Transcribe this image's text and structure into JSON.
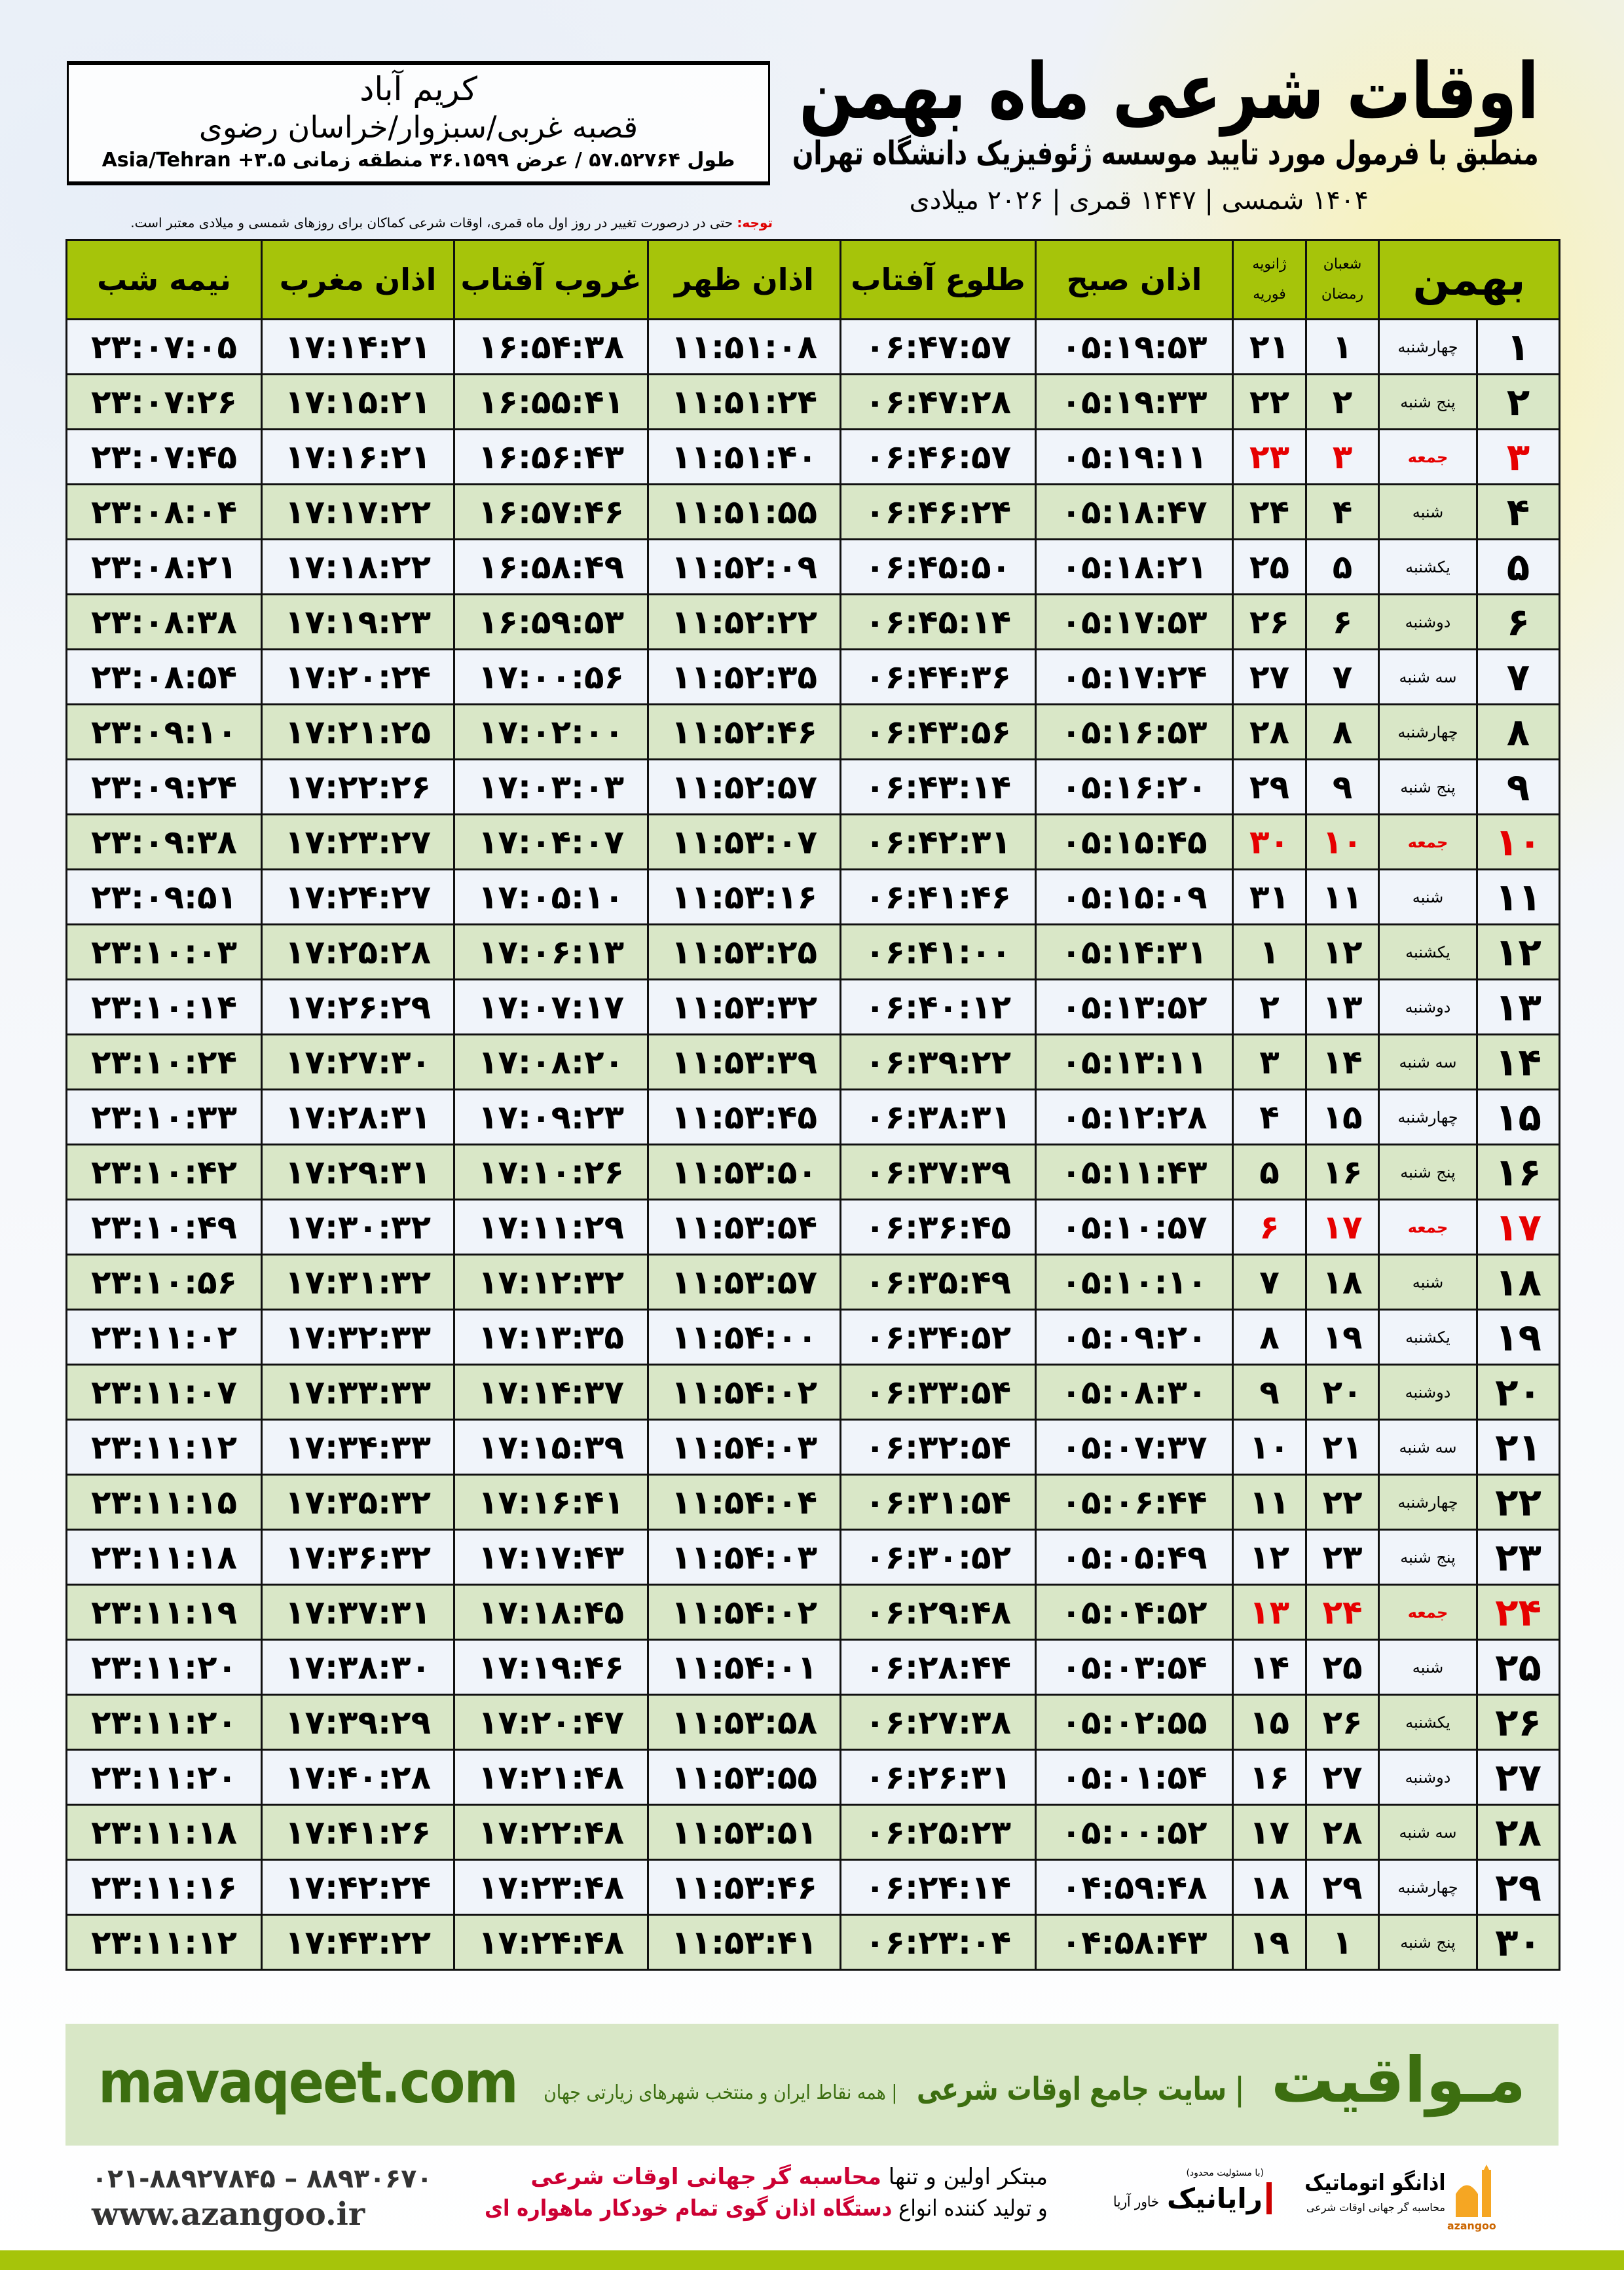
{
  "header": {
    "title": "اوقات شرعی ماه بهمن",
    "subtitle": "منطبق با فرمول مورد تایید موسسه ژئوفیزیک دانشگاه تهران",
    "dates": "۱۴۰۴ شمسی | ۱۴۴۷ قمری | ۲۰۲۶ میلادی"
  },
  "location": {
    "city": "کریم آباد",
    "region": "قصبه غربی/سبزوار/خراسان رضوی",
    "coords": "طول ۵۷.۵۲۷۶۴ / عرض ۳۶.۱۵۹۹ منطقه زمانی ۳.۵+ Asia/Tehran"
  },
  "note": {
    "label": "توجه:",
    "text": " حتی در درصورت تغییر در روز اول ماه قمری، اوقات شرعی کماکان برای روزهای شمسی و میلادی معتبر است."
  },
  "colors": {
    "header_green": "#a6c40a",
    "friday_red": "#e60000",
    "row_green": "#d9e7c7",
    "brand_green": "#3c6e10"
  },
  "table": {
    "headers": {
      "month": "بهمن",
      "hijri_top": "شعبان",
      "hijri_bottom": "رمضان",
      "greg_top": "ژانویه",
      "greg_bottom": "فوریه",
      "fajr": "اذان صبح",
      "sunrise": "طلوع آفتاب",
      "dhuhr": "اذان ظهر",
      "sunset": "غروب آفتاب",
      "maghrib": "اذان مغرب",
      "midnight": "نیمه شب"
    },
    "rows": [
      [
        "۱",
        "چهارشنبه",
        "۱",
        "۲۱",
        "۰۵:۱۹:۵۳",
        "۰۶:۴۷:۵۷",
        "۱۱:۵۱:۰۸",
        "۱۶:۵۴:۳۸",
        "۱۷:۱۴:۲۱",
        "۲۳:۰۷:۰۵"
      ],
      [
        "۲",
        "پنج شنبه",
        "۲",
        "۲۲",
        "۰۵:۱۹:۳۳",
        "۰۶:۴۷:۲۸",
        "۱۱:۵۱:۲۴",
        "۱۶:۵۵:۴۱",
        "۱۷:۱۵:۲۱",
        "۲۳:۰۷:۲۶"
      ],
      [
        "۳",
        "جمعه",
        "۳",
        "۲۳",
        "۰۵:۱۹:۱۱",
        "۰۶:۴۶:۵۷",
        "۱۱:۵۱:۴۰",
        "۱۶:۵۶:۴۳",
        "۱۷:۱۶:۲۱",
        "۲۳:۰۷:۴۵"
      ],
      [
        "۴",
        "شنبه",
        "۴",
        "۲۴",
        "۰۵:۱۸:۴۷",
        "۰۶:۴۶:۲۴",
        "۱۱:۵۱:۵۵",
        "۱۶:۵۷:۴۶",
        "۱۷:۱۷:۲۲",
        "۲۳:۰۸:۰۴"
      ],
      [
        "۵",
        "یکشنبه",
        "۵",
        "۲۵",
        "۰۵:۱۸:۲۱",
        "۰۶:۴۵:۵۰",
        "۱۱:۵۲:۰۹",
        "۱۶:۵۸:۴۹",
        "۱۷:۱۸:۲۲",
        "۲۳:۰۸:۲۱"
      ],
      [
        "۶",
        "دوشنبه",
        "۶",
        "۲۶",
        "۰۵:۱۷:۵۳",
        "۰۶:۴۵:۱۴",
        "۱۱:۵۲:۲۲",
        "۱۶:۵۹:۵۳",
        "۱۷:۱۹:۲۳",
        "۲۳:۰۸:۳۸"
      ],
      [
        "۷",
        "سه شنبه",
        "۷",
        "۲۷",
        "۰۵:۱۷:۲۴",
        "۰۶:۴۴:۳۶",
        "۱۱:۵۲:۳۵",
        "۱۷:۰۰:۵۶",
        "۱۷:۲۰:۲۴",
        "۲۳:۰۸:۵۴"
      ],
      [
        "۸",
        "چهارشنبه",
        "۸",
        "۲۸",
        "۰۵:۱۶:۵۳",
        "۰۶:۴۳:۵۶",
        "۱۱:۵۲:۴۶",
        "۱۷:۰۲:۰۰",
        "۱۷:۲۱:۲۵",
        "۲۳:۰۹:۱۰"
      ],
      [
        "۹",
        "پنج شنبه",
        "۹",
        "۲۹",
        "۰۵:۱۶:۲۰",
        "۰۶:۴۳:۱۴",
        "۱۱:۵۲:۵۷",
        "۱۷:۰۳:۰۳",
        "۱۷:۲۲:۲۶",
        "۲۳:۰۹:۲۴"
      ],
      [
        "۱۰",
        "جمعه",
        "۱۰",
        "۳۰",
        "۰۵:۱۵:۴۵",
        "۰۶:۴۲:۳۱",
        "۱۱:۵۳:۰۷",
        "۱۷:۰۴:۰۷",
        "۱۷:۲۳:۲۷",
        "۲۳:۰۹:۳۸"
      ],
      [
        "۱۱",
        "شنبه",
        "۱۱",
        "۳۱",
        "۰۵:۱۵:۰۹",
        "۰۶:۴۱:۴۶",
        "۱۱:۵۳:۱۶",
        "۱۷:۰۵:۱۰",
        "۱۷:۲۴:۲۷",
        "۲۳:۰۹:۵۱"
      ],
      [
        "۱۲",
        "یکشنبه",
        "۱۲",
        "۱",
        "۰۵:۱۴:۳۱",
        "۰۶:۴۱:۰۰",
        "۱۱:۵۳:۲۵",
        "۱۷:۰۶:۱۳",
        "۱۷:۲۵:۲۸",
        "۲۳:۱۰:۰۳"
      ],
      [
        "۱۳",
        "دوشنبه",
        "۱۳",
        "۲",
        "۰۵:۱۳:۵۲",
        "۰۶:۴۰:۱۲",
        "۱۱:۵۳:۳۲",
        "۱۷:۰۷:۱۷",
        "۱۷:۲۶:۲۹",
        "۲۳:۱۰:۱۴"
      ],
      [
        "۱۴",
        "سه شنبه",
        "۱۴",
        "۳",
        "۰۵:۱۳:۱۱",
        "۰۶:۳۹:۲۲",
        "۱۱:۵۳:۳۹",
        "۱۷:۰۸:۲۰",
        "۱۷:۲۷:۳۰",
        "۲۳:۱۰:۲۴"
      ],
      [
        "۱۵",
        "چهارشنبه",
        "۱۵",
        "۴",
        "۰۵:۱۲:۲۸",
        "۰۶:۳۸:۳۱",
        "۱۱:۵۳:۴۵",
        "۱۷:۰۹:۲۳",
        "۱۷:۲۸:۳۱",
        "۲۳:۱۰:۳۳"
      ],
      [
        "۱۶",
        "پنج شنبه",
        "۱۶",
        "۵",
        "۰۵:۱۱:۴۳",
        "۰۶:۳۷:۳۹",
        "۱۱:۵۳:۵۰",
        "۱۷:۱۰:۲۶",
        "۱۷:۲۹:۳۱",
        "۲۳:۱۰:۴۲"
      ],
      [
        "۱۷",
        "جمعه",
        "۱۷",
        "۶",
        "۰۵:۱۰:۵۷",
        "۰۶:۳۶:۴۵",
        "۱۱:۵۳:۵۴",
        "۱۷:۱۱:۲۹",
        "۱۷:۳۰:۳۲",
        "۲۳:۱۰:۴۹"
      ],
      [
        "۱۸",
        "شنبه",
        "۱۸",
        "۷",
        "۰۵:۱۰:۱۰",
        "۰۶:۳۵:۴۹",
        "۱۱:۵۳:۵۷",
        "۱۷:۱۲:۳۲",
        "۱۷:۳۱:۳۲",
        "۲۳:۱۰:۵۶"
      ],
      [
        "۱۹",
        "یکشنبه",
        "۱۹",
        "۸",
        "۰۵:۰۹:۲۰",
        "۰۶:۳۴:۵۲",
        "۱۱:۵۴:۰۰",
        "۱۷:۱۳:۳۵",
        "۱۷:۳۲:۳۳",
        "۲۳:۱۱:۰۲"
      ],
      [
        "۲۰",
        "دوشنبه",
        "۲۰",
        "۹",
        "۰۵:۰۸:۳۰",
        "۰۶:۳۳:۵۴",
        "۱۱:۵۴:۰۲",
        "۱۷:۱۴:۳۷",
        "۱۷:۳۳:۳۳",
        "۲۳:۱۱:۰۷"
      ],
      [
        "۲۱",
        "سه شنبه",
        "۲۱",
        "۱۰",
        "۰۵:۰۷:۳۷",
        "۰۶:۳۲:۵۴",
        "۱۱:۵۴:۰۳",
        "۱۷:۱۵:۳۹",
        "۱۷:۳۴:۳۳",
        "۲۳:۱۱:۱۲"
      ],
      [
        "۲۲",
        "چهارشنبه",
        "۲۲",
        "۱۱",
        "۰۵:۰۶:۴۴",
        "۰۶:۳۱:۵۴",
        "۱۱:۵۴:۰۴",
        "۱۷:۱۶:۴۱",
        "۱۷:۳۵:۳۲",
        "۲۳:۱۱:۱۵"
      ],
      [
        "۲۳",
        "پنج شنبه",
        "۲۳",
        "۱۲",
        "۰۵:۰۵:۴۹",
        "۰۶:۳۰:۵۲",
        "۱۱:۵۴:۰۳",
        "۱۷:۱۷:۴۳",
        "۱۷:۳۶:۳۲",
        "۲۳:۱۱:۱۸"
      ],
      [
        "۲۴",
        "جمعه",
        "۲۴",
        "۱۳",
        "۰۵:۰۴:۵۲",
        "۰۶:۲۹:۴۸",
        "۱۱:۵۴:۰۲",
        "۱۷:۱۸:۴۵",
        "۱۷:۳۷:۳۱",
        "۲۳:۱۱:۱۹"
      ],
      [
        "۲۵",
        "شنبه",
        "۲۵",
        "۱۴",
        "۰۵:۰۳:۵۴",
        "۰۶:۲۸:۴۴",
        "۱۱:۵۴:۰۱",
        "۱۷:۱۹:۴۶",
        "۱۷:۳۸:۳۰",
        "۲۳:۱۱:۲۰"
      ],
      [
        "۲۶",
        "یکشنبه",
        "۲۶",
        "۱۵",
        "۰۵:۰۲:۵۵",
        "۰۶:۲۷:۳۸",
        "۱۱:۵۳:۵۸",
        "۱۷:۲۰:۴۷",
        "۱۷:۳۹:۲۹",
        "۲۳:۱۱:۲۰"
      ],
      [
        "۲۷",
        "دوشنبه",
        "۲۷",
        "۱۶",
        "۰۵:۰۱:۵۴",
        "۰۶:۲۶:۳۱",
        "۱۱:۵۳:۵۵",
        "۱۷:۲۱:۴۸",
        "۱۷:۴۰:۲۸",
        "۲۳:۱۱:۲۰"
      ],
      [
        "۲۸",
        "سه شنبه",
        "۲۸",
        "۱۷",
        "۰۵:۰۰:۵۲",
        "۰۶:۲۵:۲۳",
        "۱۱:۵۳:۵۱",
        "۱۷:۲۲:۴۸",
        "۱۷:۴۱:۲۶",
        "۲۳:۱۱:۱۸"
      ],
      [
        "۲۹",
        "چهارشنبه",
        "۲۹",
        "۱۸",
        "۰۴:۵۹:۴۸",
        "۰۶:۲۴:۱۴",
        "۱۱:۵۳:۴۶",
        "۱۷:۲۳:۴۸",
        "۱۷:۴۲:۲۴",
        "۲۳:۱۱:۱۶"
      ],
      [
        "۳۰",
        "پنج شنبه",
        "۱",
        "۱۹",
        "۰۴:۵۸:۴۳",
        "۰۶:۲۳:۰۴",
        "۱۱:۵۳:۴۱",
        "۱۷:۲۴:۴۸",
        "۱۷:۴۳:۲۲",
        "۲۳:۱۱:۱۲"
      ]
    ]
  },
  "banner": {
    "brand": "مـواقیت",
    "slogan": "سایت جامع اوقات شرعی",
    "slogan2": "همه نقاط ایران و منتخب شهرهای زیارتی جهان",
    "site": "mavaqeet.com"
  },
  "footer": {
    "promo_1a": "مبتکر اولین و تنها ",
    "promo_1b": "محاسبه گر جهانی اوقات شرعی",
    "promo_2a": "و تولید کننده انواع ",
    "promo_2b": "دستگاه اذان گوی تمام خودکار ماهواره ای",
    "phone": "۰۲۱-۸۸۹۲۷۸۴۵ – ۸۸۹۳۰۶۷۰",
    "web": "www.azangoo.ir",
    "logo1_text": "اذانگو اتوماتیک",
    "logo1_sub": "محاسبه گر جهانی اوقات شرعی",
    "logo1_latin": "azangoo",
    "logo2_text": "رایانیک",
    "logo2_sub": "خاور آریا",
    "logo2_top": "(با مسئولیت محدود)"
  }
}
